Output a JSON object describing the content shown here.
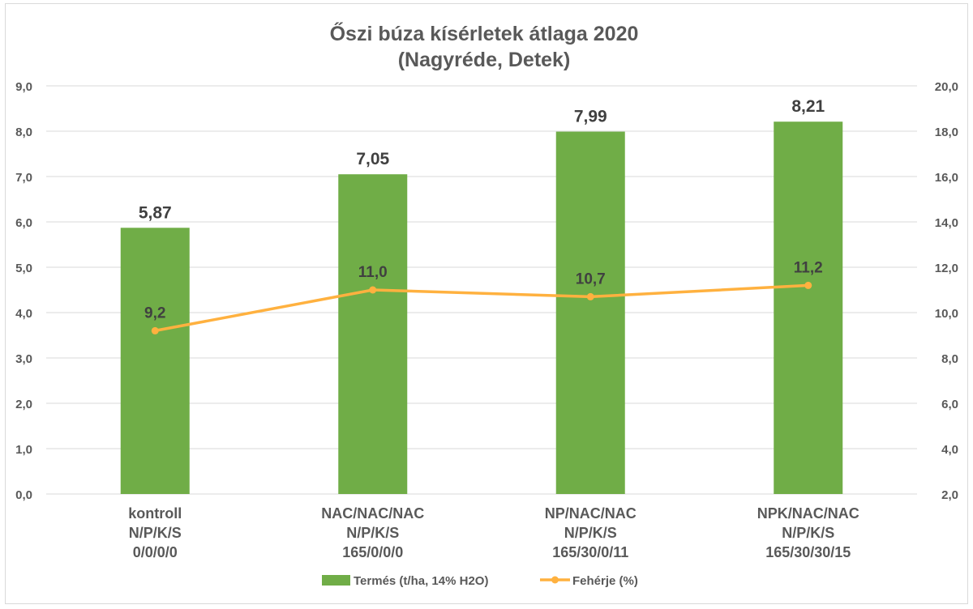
{
  "chart_data": {
    "type": "bar+line",
    "title": "Őszi búza kísérletek átlaga 2020",
    "subtitle": "(Nagyréde, Detek)",
    "categories": [
      [
        "kontroll",
        "N/P/K/S",
        "0/0/0/0"
      ],
      [
        "NAC/NAC/NAC",
        "N/P/K/S",
        "165/0/0/0"
      ],
      [
        "NP/NAC/NAC",
        "N/P/K/S",
        "165/30/0/11"
      ],
      [
        "NPK/NAC/NAC",
        "N/P/K/S",
        "165/30/30/15"
      ]
    ],
    "series": [
      {
        "name": "Termés (t/ha, 14% H2O)",
        "type": "bar",
        "axis": "left",
        "color": "#70ad47",
        "values": [
          5.87,
          7.05,
          7.99,
          8.21
        ],
        "labels": [
          "5,87",
          "7,05",
          "7,99",
          "8,21"
        ]
      },
      {
        "name": "Fehérje (%)",
        "type": "line",
        "axis": "right",
        "color": "#ffb13f",
        "values": [
          9.2,
          11.0,
          10.7,
          11.2
        ],
        "labels": [
          "9,2",
          "11,0",
          "10,7",
          "11,2"
        ]
      }
    ],
    "y_left": {
      "range": [
        0,
        9
      ],
      "ticks": [
        "0,0",
        "1,0",
        "2,0",
        "3,0",
        "4,0",
        "5,0",
        "6,0",
        "7,0",
        "8,0",
        "9,0"
      ]
    },
    "y_right": {
      "range": [
        2,
        20
      ],
      "ticks": [
        "2,0",
        "4,0",
        "6,0",
        "8,0",
        "10,0",
        "12,0",
        "14,0",
        "16,0",
        "18,0",
        "20,0"
      ]
    },
    "grid": true,
    "legend": "bottom"
  }
}
